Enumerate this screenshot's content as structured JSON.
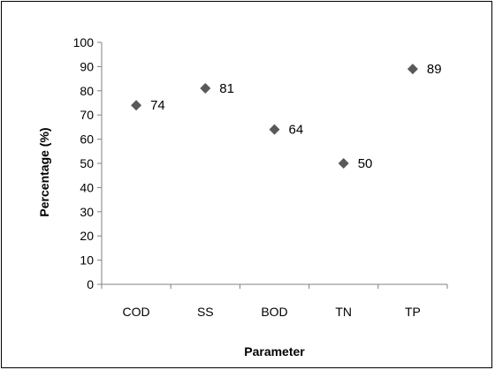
{
  "chart_data": {
    "type": "scatter",
    "title": "",
    "xlabel": "Parameter",
    "ylabel": "Percentage (%)",
    "categories": [
      "COD",
      "SS",
      "BOD",
      "TN",
      "TP"
    ],
    "values": [
      74,
      81,
      64,
      50,
      89
    ],
    "data_labels": [
      "74",
      "81",
      "64",
      "50",
      "89"
    ],
    "ylim": [
      0,
      100
    ],
    "yticks": [
      "0",
      "10",
      "20",
      "30",
      "40",
      "50",
      "60",
      "70",
      "80",
      "90",
      "100"
    ],
    "marker": "diamond",
    "marker_color": "#595959",
    "grid": false,
    "legend": "none"
  }
}
